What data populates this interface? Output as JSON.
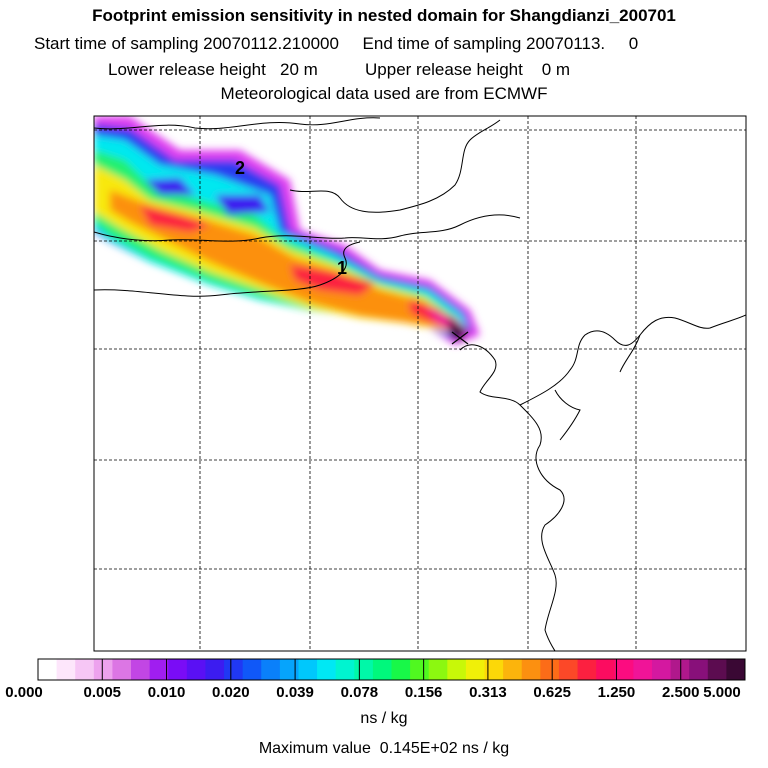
{
  "header": {
    "title": "Footprint emission sensitivity in nested domain for Shangdianzi_200701",
    "sampling": "Start time of sampling 20070112.210000     End time of sampling 20070113.     0",
    "release": "Lower release height   20 m          Upper release height    0 m",
    "meteo": "Meteorological data used are from ECMWF"
  },
  "map": {
    "labels": [
      "2",
      "1"
    ]
  },
  "colorbar": {
    "ticks": [
      "0.000",
      "0.005",
      "0.010",
      "0.020",
      "0.039",
      "0.078",
      "0.156",
      "0.313",
      "0.625",
      "1.250",
      "2.500",
      "5.000"
    ],
    "colors": [
      "#ffffff",
      "#fde6fb",
      "#f6c6f5",
      "#eda2ee",
      "#dc76e4",
      "#c246e4",
      "#a01ef0",
      "#7a0cf6",
      "#5a10f4",
      "#3c1cf0",
      "#2038f4",
      "#1058f8",
      "#0a80fa",
      "#06a4fc",
      "#00c8fc",
      "#00e8f4",
      "#00f4d0",
      "#00f8a8",
      "#00f87c",
      "#18f848",
      "#50f820",
      "#8cf810",
      "#c8f808",
      "#f0f008",
      "#fcd808",
      "#fcb40c",
      "#fc9010",
      "#fc6c18",
      "#fc4828",
      "#fc2040",
      "#fc0c60",
      "#fc0c80",
      "#f01498",
      "#d418a0",
      "#b0188c",
      "#88107a",
      "#5c0c50",
      "#3a0834"
    ],
    "units": "ns / kg",
    "max_label": "Maximum value  0.145E+02 ns / kg"
  }
}
